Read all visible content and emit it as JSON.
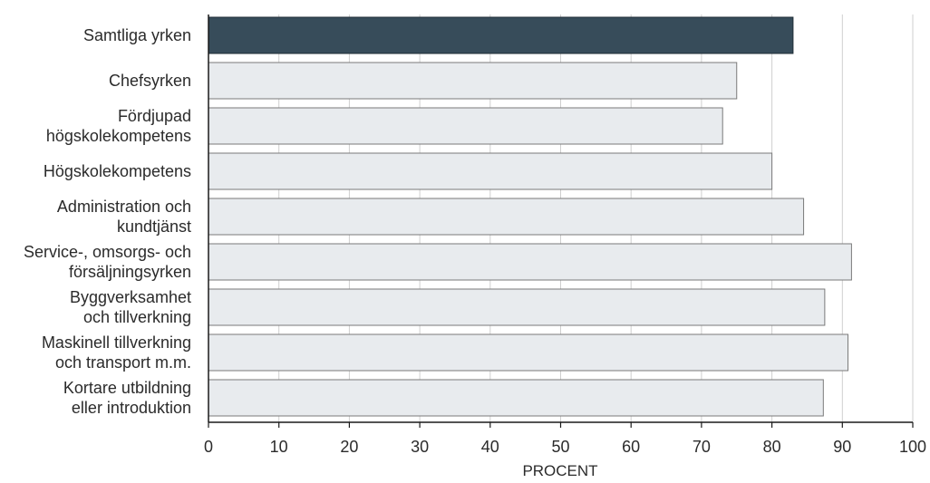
{
  "chart_data": {
    "type": "bar",
    "orientation": "horizontal",
    "title": "",
    "xlabel": "PROCENT",
    "ylabel": "",
    "xlim": [
      0,
      100
    ],
    "xticks": [
      0,
      10,
      20,
      30,
      40,
      50,
      60,
      70,
      80,
      90,
      100
    ],
    "grid": "vertical",
    "legend": "none",
    "highlight_color": "#374c5a",
    "bar_color": "#e8ebee",
    "bar_edge_color": "#7a7a7a",
    "categories": [
      "Samtliga yrken",
      "Chefsyrken",
      "Fördjupad högskolekompetens",
      "Högskolekompetens",
      "Administration och kundtjänst",
      "Service-, omsorgs- och försäljningsyrken",
      "Byggverksamhet och tillverkning",
      "Maskinell tillverkning och transport m.m.",
      "Kortare utbildning eller introduktion"
    ],
    "category_lines": [
      [
        "Samtliga yrken"
      ],
      [
        "Chefsyrken"
      ],
      [
        "Fördjupad",
        "högskolekompetens"
      ],
      [
        "Högskolekompetens"
      ],
      [
        "Administration och",
        "kundtjänst"
      ],
      [
        "Service-, omsorgs- och",
        "försäljningsyrken"
      ],
      [
        "Byggverksamhet",
        "och tillverkning"
      ],
      [
        "Maskinell tillverkning",
        "och transport m.m."
      ],
      [
        "Kortare utbildning",
        "eller introduktion"
      ]
    ],
    "values": [
      83,
      75,
      73,
      80,
      84.5,
      91.3,
      87.5,
      90.8,
      87.3
    ],
    "highlighted": [
      true,
      false,
      false,
      false,
      false,
      false,
      false,
      false,
      false
    ]
  }
}
